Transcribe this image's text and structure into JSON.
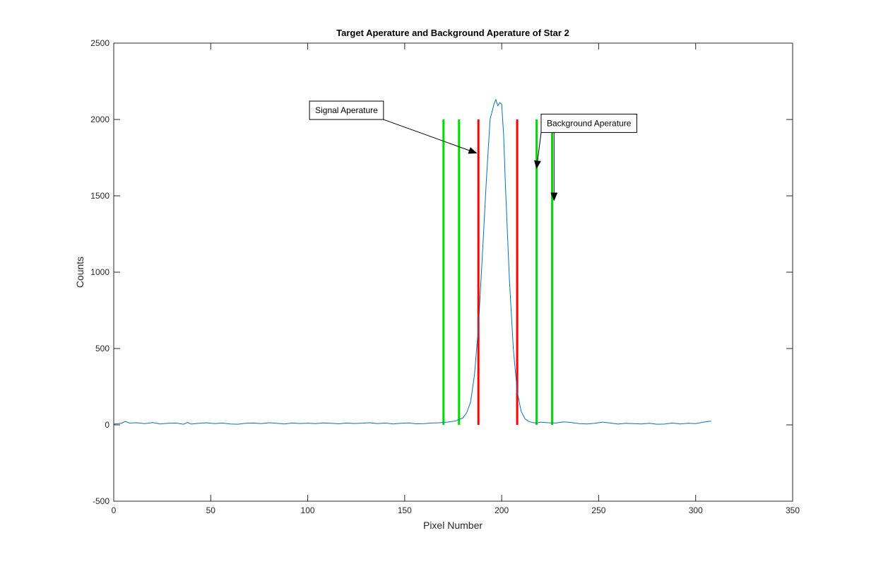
{
  "chart_data": {
    "type": "line",
    "title": "Target Aperature and Background Aperature of Star 2",
    "xlabel": "Pixel Number",
    "ylabel": "Counts",
    "xlim": [
      0,
      350
    ],
    "ylim": [
      -500,
      2500
    ],
    "xticks": [
      0,
      50,
      100,
      150,
      200,
      250,
      300,
      350
    ],
    "yticks": [
      -500,
      0,
      500,
      1000,
      1500,
      2000,
      2500
    ],
    "grid": false,
    "series": [
      {
        "color": "#0072BD",
        "x": [
          0,
          4,
          6,
          8,
          12,
          16,
          20,
          24,
          28,
          32,
          36,
          38,
          40,
          44,
          48,
          52,
          56,
          60,
          64,
          68,
          72,
          76,
          80,
          84,
          88,
          92,
          96,
          100,
          104,
          108,
          112,
          116,
          120,
          124,
          128,
          132,
          136,
          140,
          144,
          148,
          152,
          156,
          160,
          164,
          168,
          172,
          176,
          180,
          182,
          184,
          186,
          188,
          190,
          192,
          194,
          196,
          197,
          198,
          199,
          200,
          201,
          202,
          204,
          206,
          208,
          210,
          212,
          214,
          216,
          218,
          220,
          224,
          228,
          232,
          236,
          240,
          244,
          248,
          252,
          256,
          260,
          264,
          268,
          272,
          276,
          280,
          284,
          288,
          292,
          296,
          300,
          304,
          308
        ],
        "y": [
          5,
          10,
          22,
          12,
          14,
          8,
          15,
          6,
          10,
          12,
          4,
          16,
          5,
          10,
          14,
          8,
          12,
          6,
          4,
          10,
          12,
          8,
          14,
          10,
          6,
          12,
          9,
          11,
          8,
          13,
          10,
          7,
          12,
          9,
          11,
          14,
          8,
          12,
          6,
          10,
          13,
          7,
          8,
          12,
          14,
          18,
          25,
          45,
          80,
          150,
          330,
          640,
          1100,
          1580,
          2000,
          2100,
          2130,
          2090,
          2110,
          2100,
          1900,
          1550,
          950,
          500,
          220,
          90,
          40,
          22,
          15,
          12,
          18,
          14,
          12,
          20,
          15,
          8,
          6,
          10,
          18,
          12,
          5,
          10,
          8,
          6,
          10,
          4,
          5,
          12,
          6,
          10,
          8,
          18,
          25
        ]
      }
    ],
    "vertical_lines": [
      {
        "x": 170,
        "y": [
          0,
          2000
        ],
        "color": "#00DD00"
      },
      {
        "x": 178,
        "y": [
          0,
          2000
        ],
        "color": "#00DD00"
      },
      {
        "x": 188,
        "y": [
          0,
          2000
        ],
        "color": "#FF0000"
      },
      {
        "x": 208,
        "y": [
          0,
          2000
        ],
        "color": "#FF0000"
      },
      {
        "x": 218,
        "y": [
          0,
          2000
        ],
        "color": "#00DD00"
      },
      {
        "x": 226,
        "y": [
          0,
          2000
        ],
        "color": "#00DD00"
      }
    ],
    "annotations": [
      {
        "text": "Signal Aperature",
        "box": [
          120,
          2060
        ],
        "arrows_to": [
          [
            187,
            1780
          ]
        ]
      },
      {
        "text": "Background Aperature",
        "box": [
          245,
          1975
        ],
        "arrows_to": [
          [
            218,
            1680
          ],
          [
            227,
            1470
          ]
        ]
      }
    ]
  }
}
